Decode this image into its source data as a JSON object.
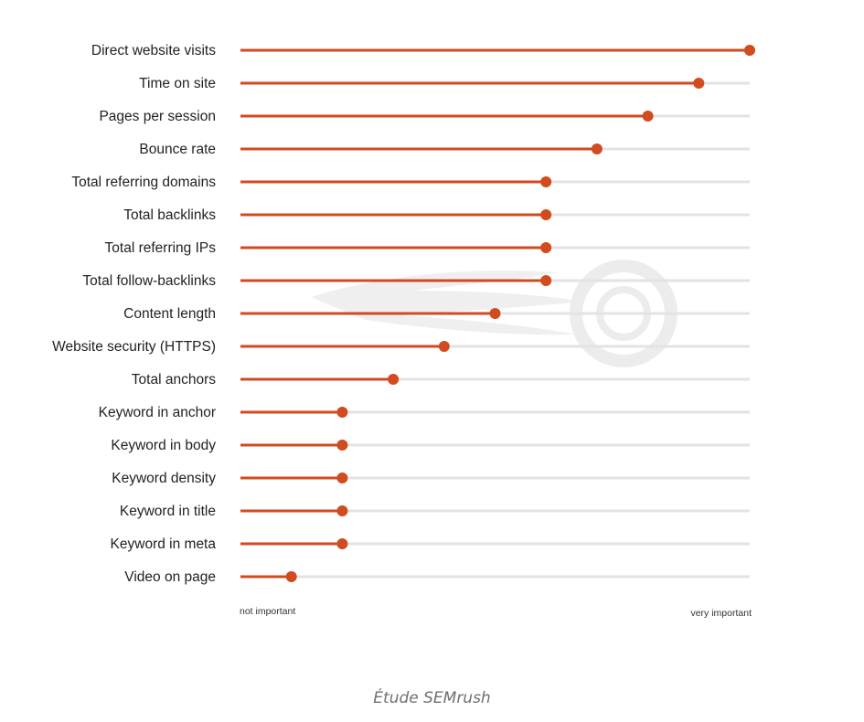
{
  "chart_data": {
    "type": "lollipop",
    "orientation": "horizontal",
    "categories": [
      "Direct website visits",
      "Time on site",
      "Pages per session",
      "Bounce rate",
      "Total referring domains",
      "Total backlinks",
      "Total referring IPs",
      "Total follow-backlinks",
      "Content length",
      "Website security (HTTPS)",
      "Total anchors",
      "Keyword in anchor",
      "Keyword in body",
      "Keyword density",
      "Keyword in title",
      "Keyword in meta",
      "Video on page"
    ],
    "values": [
      1.0,
      0.9,
      0.8,
      0.7,
      0.6,
      0.6,
      0.6,
      0.6,
      0.5,
      0.4,
      0.3,
      0.2,
      0.2,
      0.2,
      0.2,
      0.2,
      0.1
    ],
    "xlim": [
      0,
      1
    ],
    "x_axis_start_label": "not important",
    "x_axis_end_label": "very important",
    "grid": false,
    "legend": "none",
    "colors": {
      "value_line": "#d24a1f",
      "marker": "#d24a1f",
      "track": "#e3e3e3",
      "watermark": "#ebebeb"
    },
    "watermark_icon": "semrush-logo-icon"
  },
  "caption": "Étude SEMrush"
}
